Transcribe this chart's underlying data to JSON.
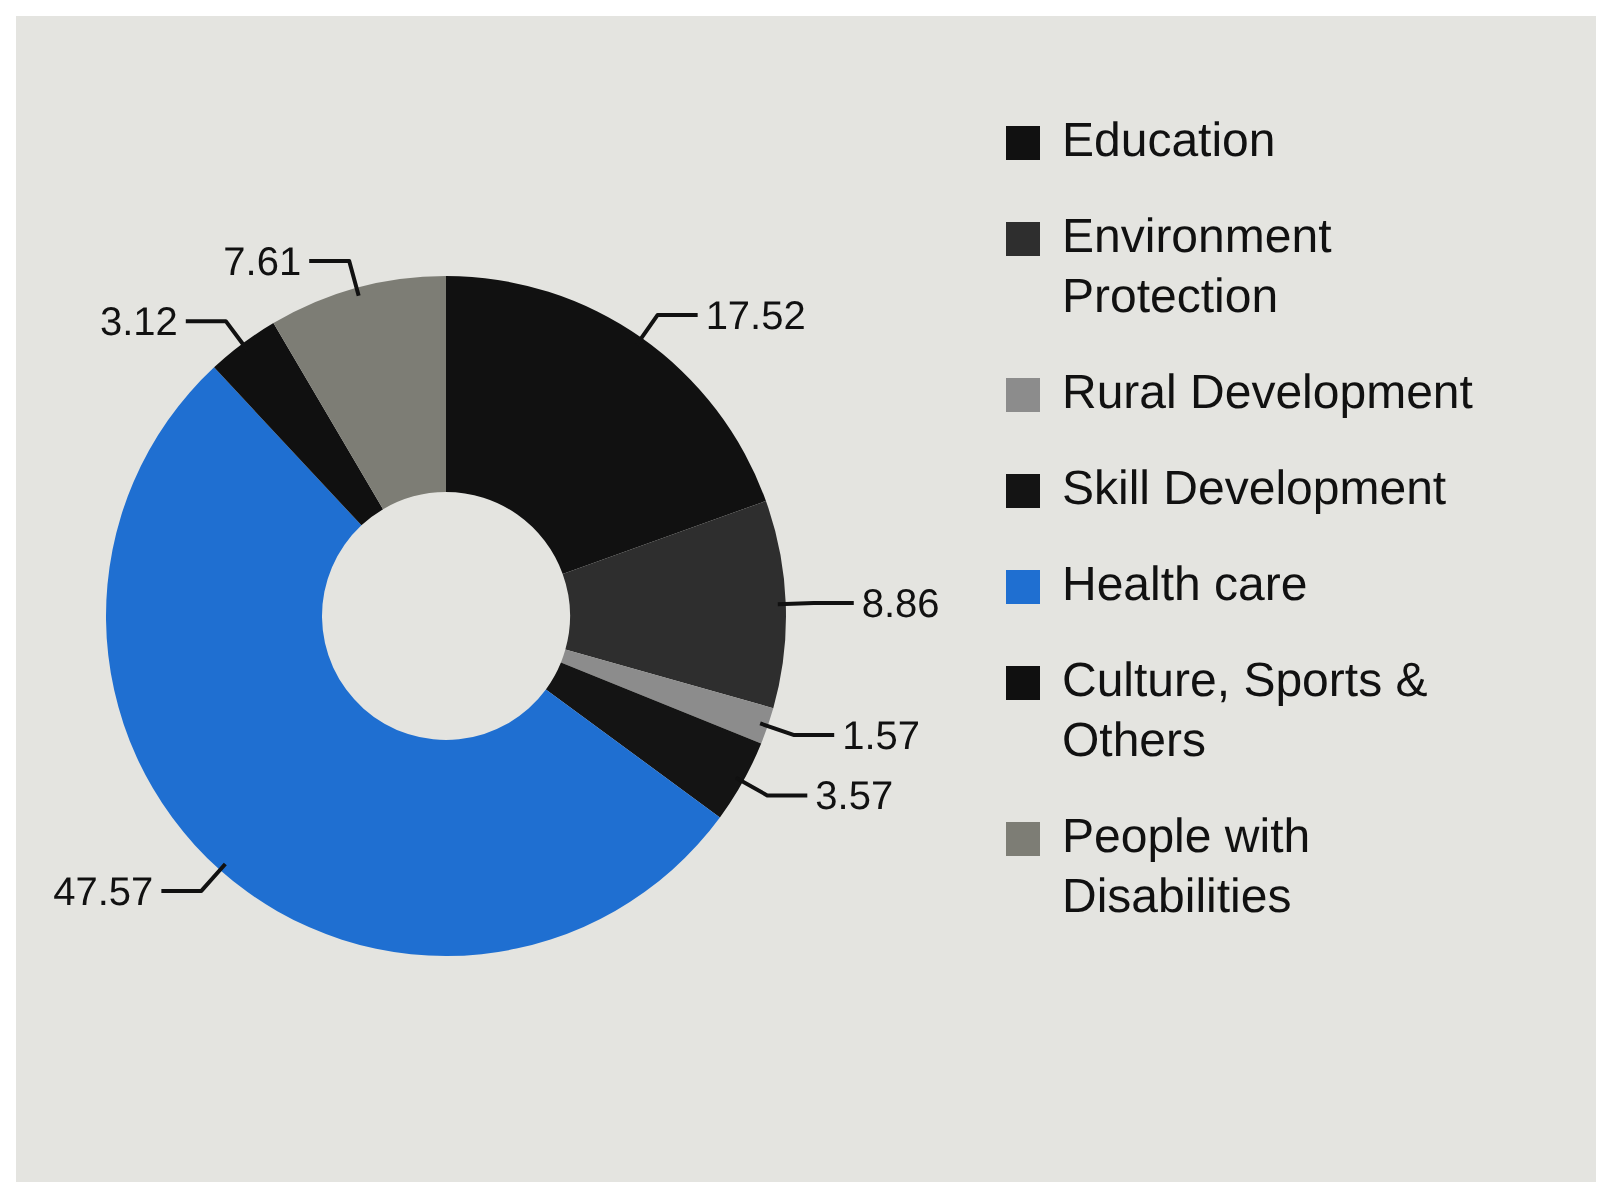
{
  "chart_data": {
    "type": "donut",
    "categories": [
      "Education",
      "Environment Protection",
      "Rural Development",
      "Skill Development",
      "Health care",
      "Culture, Sports & Others",
      "People with Disabilities"
    ],
    "values": [
      17.52,
      8.86,
      1.57,
      3.57,
      47.57,
      3.12,
      7.61
    ],
    "colors": [
      "#111111",
      "#2e2e2e",
      "#8c8c8c",
      "#141414",
      "#1f6fd1",
      "#101010",
      "#7d7d75"
    ],
    "data_labels": true,
    "legend": "right"
  }
}
